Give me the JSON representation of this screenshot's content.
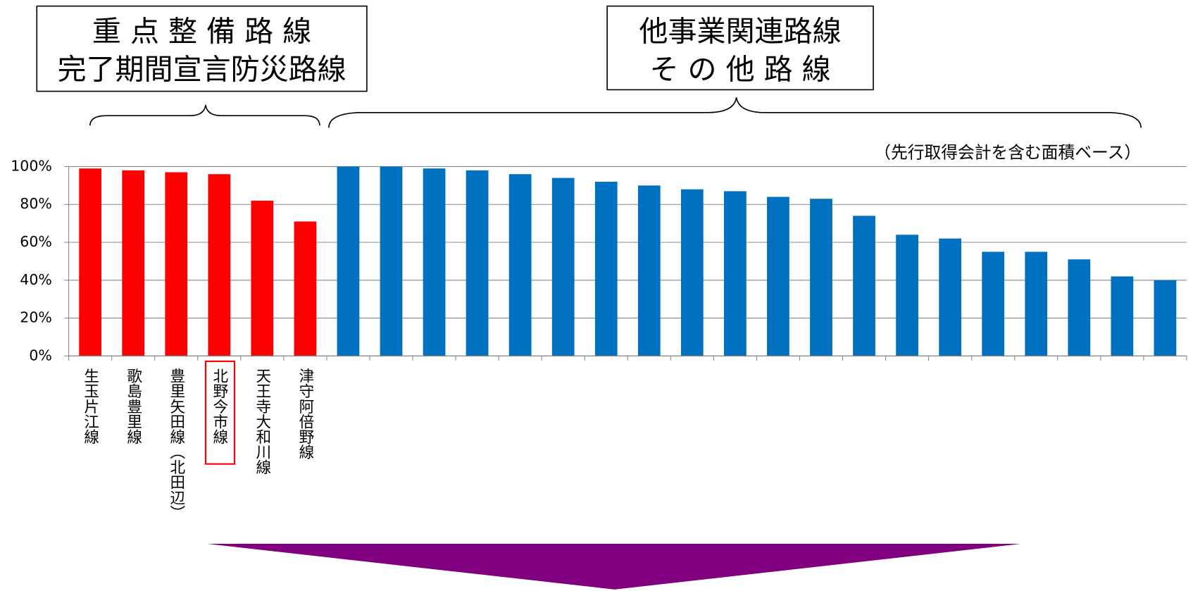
{
  "chart_data": {
    "type": "bar",
    "annotations": [
      [
        "重 点 整 備 路 線",
        "完了期間宣言防災路線"
      ],
      [
        "他事業関連路線",
        "そ の 他 路 線"
      ]
    ],
    "note": "（先行取得会計を含む面積ベース）",
    "categories": [
      "生玉片江線",
      "歌島豊里線",
      "豊里矢田線（北田辺）",
      "北野今市線",
      "天王寺大和川線",
      "津守阿倍野線",
      null,
      null,
      null,
      null,
      null,
      null,
      null,
      null,
      null,
      null,
      null,
      null,
      null,
      null,
      null,
      null,
      null,
      null,
      null,
      null
    ],
    "values": [
      99,
      98,
      97,
      96,
      82,
      71,
      100,
      100,
      99,
      98,
      96,
      94,
      92,
      90,
      88,
      87,
      84,
      83,
      74,
      64,
      62,
      55,
      55,
      51,
      42,
      40
    ],
    "colors": [
      "#ff0000",
      "#ff0000",
      "#ff0000",
      "#ff0000",
      "#ff0000",
      "#ff0000",
      "#0070c0",
      "#0070c0",
      "#0070c0",
      "#0070c0",
      "#0070c0",
      "#0070c0",
      "#0070c0",
      "#0070c0",
      "#0070c0",
      "#0070c0",
      "#0070c0",
      "#0070c0",
      "#0070c0",
      "#0070c0",
      "#0070c0",
      "#0070c0",
      "#0070c0",
      "#0070c0",
      "#0070c0",
      "#0070c0"
    ],
    "ylim": [
      0,
      100
    ],
    "yticks": [
      {
        "value": 0,
        "label": "0%"
      },
      {
        "value": 20,
        "label": "20%"
      },
      {
        "value": 40,
        "label": "40%"
      },
      {
        "value": 60,
        "label": "60%"
      },
      {
        "value": 80,
        "label": "80%"
      },
      {
        "value": 100,
        "label": "100%"
      }
    ],
    "grid": true
  }
}
